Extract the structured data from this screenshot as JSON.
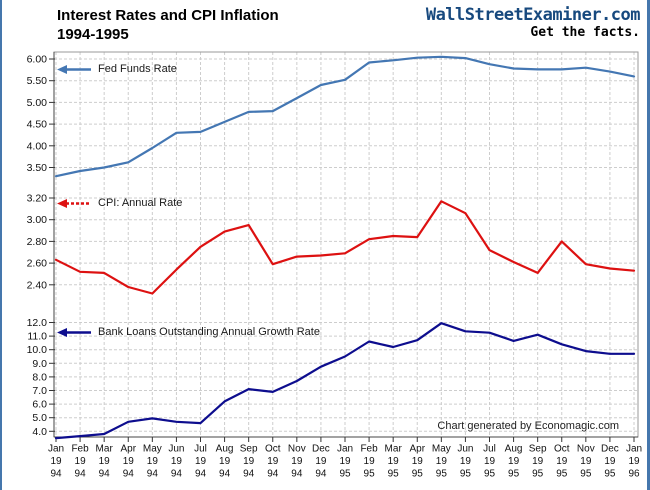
{
  "header": {
    "title_line1": "Interest Rates and CPI Inflation",
    "title_line2": "1994-1995",
    "brand": "WallStreetExaminer.com",
    "tagline": "Get the facts.",
    "brand_color": "#17497E"
  },
  "chart_data": {
    "type": "line",
    "title": "Interest Rates and CPI Inflation 1994-1995",
    "footer_note": "Chart generated by Economagic.com",
    "grid": true,
    "legend_position": "inside-left-of-each-band",
    "x_labels": [
      [
        "Jan",
        "19",
        "94"
      ],
      [
        "Feb",
        "19",
        "94"
      ],
      [
        "Mar",
        "19",
        "94"
      ],
      [
        "Apr",
        "19",
        "94"
      ],
      [
        "May",
        "19",
        "94"
      ],
      [
        "Jun",
        "19",
        "94"
      ],
      [
        "Jul",
        "19",
        "94"
      ],
      [
        "Aug",
        "19",
        "94"
      ],
      [
        "Sep",
        "19",
        "94"
      ],
      [
        "Oct",
        "19",
        "94"
      ],
      [
        "Nov",
        "19",
        "94"
      ],
      [
        "Dec",
        "19",
        "94"
      ],
      [
        "Jan",
        "19",
        "95"
      ],
      [
        "Feb",
        "19",
        "95"
      ],
      [
        "Mar",
        "19",
        "95"
      ],
      [
        "Apr",
        "19",
        "95"
      ],
      [
        "May",
        "19",
        "95"
      ],
      [
        "Jun",
        "19",
        "95"
      ],
      [
        "Jul",
        "19",
        "95"
      ],
      [
        "Aug",
        "19",
        "95"
      ],
      [
        "Sep",
        "19",
        "95"
      ],
      [
        "Oct",
        "19",
        "95"
      ],
      [
        "Nov",
        "19",
        "95"
      ],
      [
        "Dec",
        "19",
        "95"
      ],
      [
        "Jan",
        "19",
        "96"
      ]
    ],
    "series": [
      {
        "name": "Fed Funds Rate",
        "color": "#4477B3",
        "axis_ticks": [
          "6.00",
          "5.50",
          "5.00",
          "4.50",
          "4.00",
          "3.50"
        ],
        "axis_range": [
          3.2,
          6.2
        ],
        "values": [
          3.3,
          3.42,
          3.5,
          3.62,
          3.95,
          4.3,
          4.32,
          4.55,
          4.78,
          4.8,
          5.1,
          5.4,
          5.52,
          5.92,
          5.97,
          6.03,
          6.05,
          6.02,
          5.88,
          5.78,
          5.76,
          5.76,
          5.8,
          5.71,
          5.6
        ]
      },
      {
        "name": "CPI: Annual Rate",
        "color": "#DD1111",
        "axis_ticks": [
          "3.20",
          "3.00",
          "2.80",
          "2.60",
          "2.40"
        ],
        "axis_range": [
          2.25,
          3.25
        ],
        "values": [
          2.63,
          2.52,
          2.51,
          2.38,
          2.32,
          2.54,
          2.75,
          2.89,
          2.95,
          2.59,
          2.66,
          2.67,
          2.69,
          2.82,
          2.85,
          2.84,
          3.17,
          3.06,
          2.72,
          2.61,
          2.51,
          2.8,
          2.59,
          2.55,
          2.53
        ]
      },
      {
        "name": "Bank Loans Outstanding Annual Growth Rate",
        "color": "#0D0D8E",
        "axis_ticks": [
          "12.0",
          "11.0",
          "10.0",
          "9.0",
          "8.0",
          "7.0",
          "6.0",
          "5.0",
          "4.0"
        ],
        "axis_range": [
          3.4,
          12.1
        ],
        "values": [
          3.5,
          3.65,
          3.8,
          4.7,
          4.95,
          4.7,
          4.6,
          6.2,
          7.1,
          6.9,
          7.7,
          8.75,
          9.5,
          10.6,
          10.2,
          10.7,
          11.95,
          11.35,
          11.25,
          10.65,
          11.1,
          10.4,
          9.9,
          9.7,
          9.7
        ]
      }
    ]
  }
}
